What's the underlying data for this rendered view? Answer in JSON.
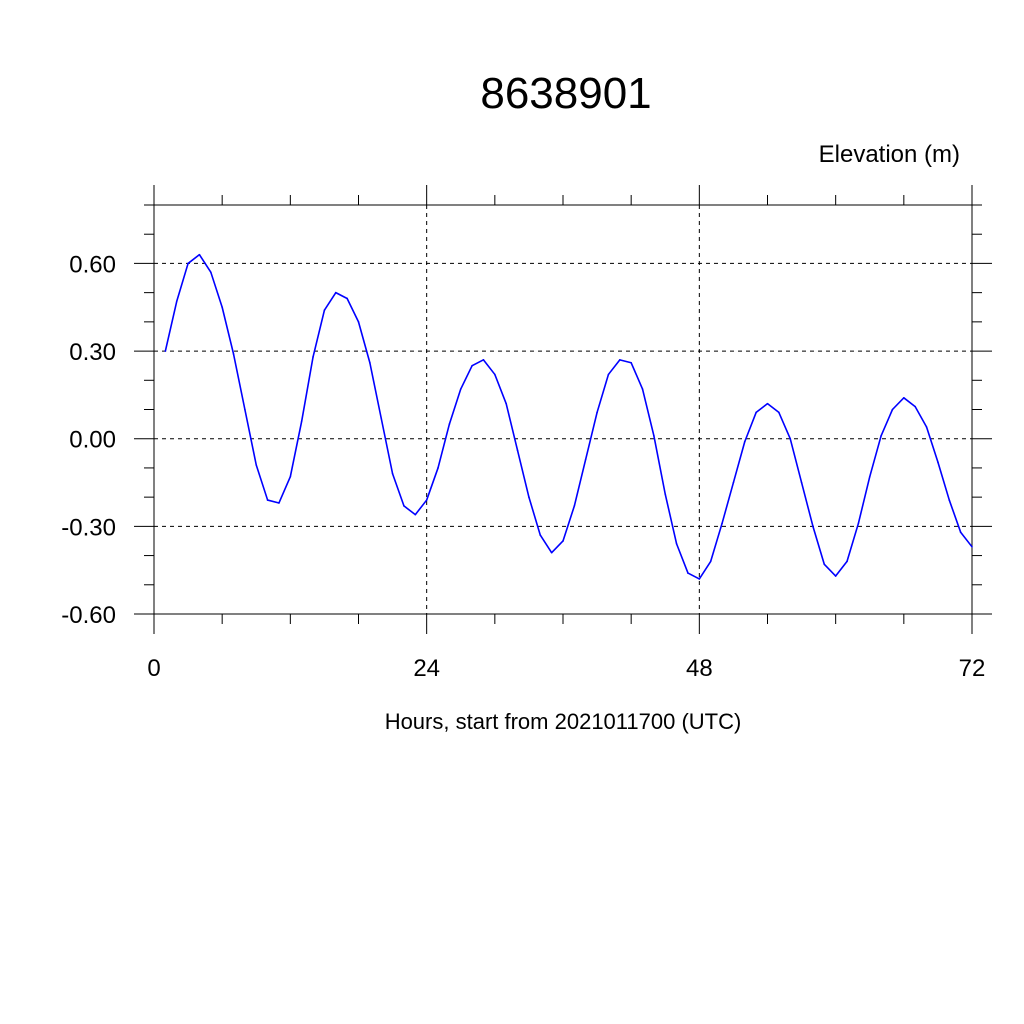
{
  "chart_data": {
    "type": "line",
    "title": "8638901",
    "ylabel": "Elevation (m)",
    "xlabel": "Hours, start from 2021011700 (UTC)",
    "xlim": [
      0,
      72
    ],
    "ylim": [
      -0.6,
      0.8
    ],
    "xticks": [
      0,
      24,
      48,
      72
    ],
    "xtick_labels": [
      "0",
      "24",
      "48",
      "72"
    ],
    "yticks": [
      0.6,
      0.3,
      0.0,
      -0.3,
      -0.6
    ],
    "ytick_labels": [
      "0.60",
      "0.30",
      "0.00",
      "-0.30",
      "-0.60"
    ],
    "grid": true,
    "series": [
      {
        "color": "#0000ff",
        "x": [
          1,
          2,
          3,
          4,
          5,
          6,
          7,
          8,
          9,
          10,
          11,
          12,
          13,
          14,
          15,
          16,
          17,
          18,
          19,
          20,
          21,
          22,
          23,
          24,
          25,
          26,
          27,
          28,
          29,
          30,
          31,
          32,
          33,
          34,
          35,
          36,
          37,
          38,
          39,
          40,
          41,
          42,
          43,
          44,
          45,
          46,
          47,
          48,
          49,
          50,
          51,
          52,
          53,
          54,
          55,
          56,
          57,
          58,
          59,
          60,
          61,
          62,
          63,
          64,
          65,
          66,
          67,
          68,
          69,
          70,
          71,
          72
        ],
        "y": [
          0.3,
          0.47,
          0.6,
          0.63,
          0.57,
          0.45,
          0.29,
          0.1,
          -0.09,
          -0.21,
          -0.22,
          -0.13,
          0.06,
          0.28,
          0.44,
          0.5,
          0.48,
          0.4,
          0.26,
          0.07,
          -0.12,
          -0.23,
          -0.26,
          -0.21,
          -0.1,
          0.05,
          0.17,
          0.25,
          0.27,
          0.22,
          0.12,
          -0.04,
          -0.2,
          -0.33,
          -0.39,
          -0.35,
          -0.23,
          -0.07,
          0.09,
          0.22,
          0.27,
          0.26,
          0.17,
          0.01,
          -0.19,
          -0.36,
          -0.46,
          -0.48,
          -0.42,
          -0.29,
          -0.15,
          -0.01,
          0.09,
          0.12,
          0.09,
          0.0,
          -0.15,
          -0.3,
          -0.43,
          -0.47,
          -0.42,
          -0.29,
          -0.13,
          0.01,
          0.1,
          0.14,
          0.11,
          0.04,
          -0.08,
          -0.21,
          -0.32,
          -0.37
        ]
      }
    ]
  }
}
